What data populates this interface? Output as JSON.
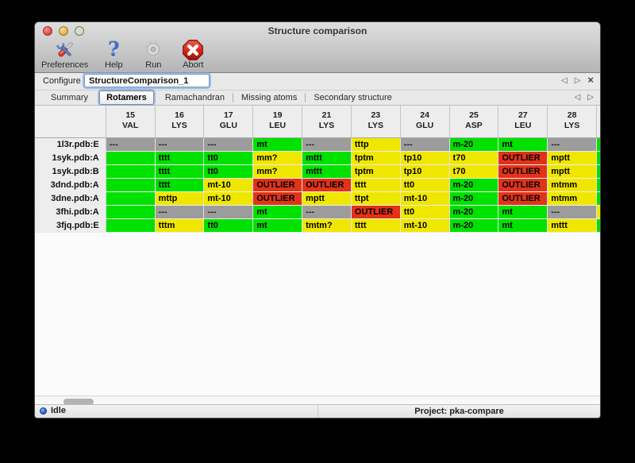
{
  "window": {
    "title": "Structure comparison"
  },
  "toolbar": {
    "items": [
      {
        "label": "Preferences",
        "icon": "preferences-tools-icon"
      },
      {
        "label": "Help",
        "icon": "help-question-icon"
      },
      {
        "label": "Run",
        "icon": "run-gear-icon"
      },
      {
        "label": "Abort",
        "icon": "abort-stop-icon"
      }
    ]
  },
  "configure": {
    "label": "Configure",
    "value": "StructureComparison_1"
  },
  "pager": {
    "back": "◁",
    "forward": "▷",
    "close": "×"
  },
  "tabs": [
    {
      "label": "Summary",
      "active": false
    },
    {
      "label": "Rotamers",
      "active": true
    },
    {
      "label": "Ramachandran",
      "active": false
    },
    {
      "label": "Missing atoms",
      "active": false
    },
    {
      "label": "Secondary structure",
      "active": false
    }
  ],
  "colors": {
    "green": "#00e100",
    "yellow": "#f0e700",
    "red": "#e23318",
    "gray": "#9c9c9c"
  },
  "table": {
    "columns": [
      {
        "number": "15",
        "residue": "VAL"
      },
      {
        "number": "16",
        "residue": "LYS"
      },
      {
        "number": "17",
        "residue": "GLU"
      },
      {
        "number": "19",
        "residue": "LEU"
      },
      {
        "number": "21",
        "residue": "LYS"
      },
      {
        "number": "23",
        "residue": "LYS"
      },
      {
        "number": "24",
        "residue": "GLU"
      },
      {
        "number": "25",
        "residue": "ASP"
      },
      {
        "number": "27",
        "residue": "LEU"
      },
      {
        "number": "28",
        "residue": "LYS"
      }
    ],
    "rows": [
      {
        "label": "1l3r.pdb:E",
        "overflow": "green",
        "cells": [
          {
            "t": "---",
            "c": "gray"
          },
          {
            "t": "---",
            "c": "gray"
          },
          {
            "t": "---",
            "c": "gray"
          },
          {
            "t": "mt",
            "c": "green"
          },
          {
            "t": "---",
            "c": "gray"
          },
          {
            "t": "tttp",
            "c": "yellow"
          },
          {
            "t": "---",
            "c": "gray"
          },
          {
            "t": "m-20",
            "c": "green"
          },
          {
            "t": "mt",
            "c": "green"
          },
          {
            "t": "---",
            "c": "gray"
          }
        ]
      },
      {
        "label": "1syk.pdb:A",
        "overflow": "green",
        "cells": [
          {
            "t": "",
            "c": "green"
          },
          {
            "t": "tttt",
            "c": "green"
          },
          {
            "t": "tt0",
            "c": "green"
          },
          {
            "t": "mm?",
            "c": "yellow"
          },
          {
            "t": "mttt",
            "c": "green"
          },
          {
            "t": "tptm",
            "c": "yellow"
          },
          {
            "t": "tp10",
            "c": "yellow"
          },
          {
            "t": "t70",
            "c": "yellow"
          },
          {
            "t": "OUTLIER",
            "c": "red"
          },
          {
            "t": "mptt",
            "c": "yellow"
          }
        ]
      },
      {
        "label": "1syk.pdb:B",
        "overflow": "green",
        "cells": [
          {
            "t": "",
            "c": "green"
          },
          {
            "t": "tttt",
            "c": "green"
          },
          {
            "t": "tt0",
            "c": "green"
          },
          {
            "t": "mm?",
            "c": "yellow"
          },
          {
            "t": "mttt",
            "c": "green"
          },
          {
            "t": "tptm",
            "c": "yellow"
          },
          {
            "t": "tp10",
            "c": "yellow"
          },
          {
            "t": "t70",
            "c": "yellow"
          },
          {
            "t": "OUTLIER",
            "c": "red"
          },
          {
            "t": "mptt",
            "c": "yellow"
          }
        ]
      },
      {
        "label": "3dnd.pdb:A",
        "overflow": "green",
        "cells": [
          {
            "t": "",
            "c": "green"
          },
          {
            "t": "tttt",
            "c": "green"
          },
          {
            "t": "mt-10",
            "c": "yellow"
          },
          {
            "t": "OUTLIER",
            "c": "red"
          },
          {
            "t": "OUTLIER",
            "c": "red"
          },
          {
            "t": "tttt",
            "c": "yellow"
          },
          {
            "t": "tt0",
            "c": "yellow"
          },
          {
            "t": "m-20",
            "c": "green"
          },
          {
            "t": "OUTLIER",
            "c": "red"
          },
          {
            "t": "mtmm",
            "c": "yellow"
          }
        ]
      },
      {
        "label": "3dne.pdb:A",
        "overflow": "green",
        "cells": [
          {
            "t": "",
            "c": "green"
          },
          {
            "t": "mttp",
            "c": "yellow"
          },
          {
            "t": "mt-10",
            "c": "yellow"
          },
          {
            "t": "OUTLIER",
            "c": "red"
          },
          {
            "t": "mptt",
            "c": "yellow"
          },
          {
            "t": "ttpt",
            "c": "yellow"
          },
          {
            "t": "mt-10",
            "c": "yellow"
          },
          {
            "t": "m-20",
            "c": "green"
          },
          {
            "t": "OUTLIER",
            "c": "red"
          },
          {
            "t": "mtmm",
            "c": "yellow"
          }
        ]
      },
      {
        "label": "3fhi.pdb:A",
        "overflow": "yellow",
        "cells": [
          {
            "t": "",
            "c": "green"
          },
          {
            "t": "---",
            "c": "gray"
          },
          {
            "t": "---",
            "c": "gray"
          },
          {
            "t": "mt",
            "c": "green"
          },
          {
            "t": "---",
            "c": "gray"
          },
          {
            "t": "OUTLIER",
            "c": "red"
          },
          {
            "t": "tt0",
            "c": "yellow"
          },
          {
            "t": "m-20",
            "c": "green"
          },
          {
            "t": "mt",
            "c": "green"
          },
          {
            "t": "---",
            "c": "gray"
          }
        ]
      },
      {
        "label": "3fjq.pdb:E",
        "overflow": "green",
        "cells": [
          {
            "t": "",
            "c": "green"
          },
          {
            "t": "tttm",
            "c": "yellow"
          },
          {
            "t": "tt0",
            "c": "green"
          },
          {
            "t": "mt",
            "c": "green"
          },
          {
            "t": "tmtm?",
            "c": "yellow"
          },
          {
            "t": "tttt",
            "c": "yellow"
          },
          {
            "t": "mt-10",
            "c": "yellow"
          },
          {
            "t": "m-20",
            "c": "green"
          },
          {
            "t": "mt",
            "c": "green"
          },
          {
            "t": "mttt",
            "c": "yellow"
          }
        ]
      }
    ]
  },
  "status": {
    "state": "Idle",
    "project": "Project: pka-compare"
  }
}
